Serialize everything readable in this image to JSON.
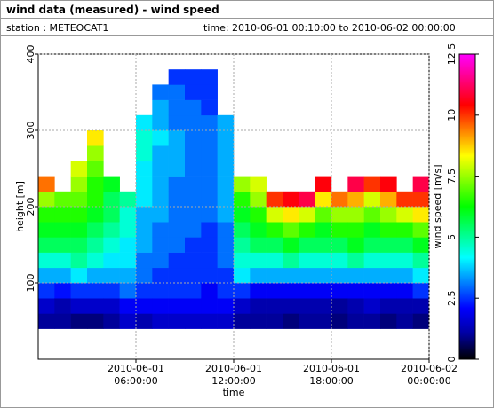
{
  "header": {
    "title": "wind data (measured) - wind speed",
    "station": "station : METEOCAT1",
    "time": "time: 2010-06-01 00:10:00 to 2010-06-02 00:00:00"
  },
  "chart_data": {
    "type": "heatmap",
    "xlabel": "time",
    "ylabel": "height [m]",
    "colorbar_label": "wind speed [m/s]",
    "xlim": [
      0,
      24
    ],
    "xticks": [
      {
        "value": 6,
        "label": "2010-06-01\n06:00:00"
      },
      {
        "value": 12,
        "label": "2010-06-01\n12:00:00"
      },
      {
        "value": 18,
        "label": "2010-06-01\n18:00:00"
      },
      {
        "value": 24,
        "label": "2010-06-02\n00:00:00"
      }
    ],
    "ylim": [
      0,
      400
    ],
    "yticks": [
      100,
      200,
      300,
      400
    ],
    "zlim": [
      0,
      12.5
    ],
    "zticks": [
      0,
      2.5,
      5,
      7.5,
      10,
      12.5
    ],
    "colors": [
      "#000000",
      "#0000a0",
      "#0000ff",
      "#0080ff",
      "#00ffff",
      "#00ff80",
      "#00ff00",
      "#80ff00",
      "#ffff00",
      "#ff8000",
      "#ff0000",
      "#ff0080",
      "#ff00ff"
    ],
    "grid": true,
    "x": [
      0.5,
      1.5,
      2.5,
      3.5,
      4.5,
      5.5,
      6.5,
      7.5,
      8.5,
      9.5,
      10.5,
      11.5,
      12.5,
      13.5,
      14.5,
      15.5,
      16.5,
      17.5,
      18.5,
      19.5,
      20.5,
      21.5,
      22.5,
      23.5
    ],
    "y": [
      50,
      70,
      90,
      110,
      130,
      150,
      170,
      190,
      210,
      230,
      250,
      270,
      290,
      310,
      330,
      350,
      370
    ],
    "values": [
      [
        1,
        1.5,
        2.5,
        3.5,
        4.5,
        5.5,
        6,
        6.5,
        7.5,
        9.5,
        null,
        null,
        null,
        null,
        null,
        null,
        null
      ],
      [
        1,
        1.2,
        2.2,
        3.5,
        4.5,
        5.5,
        6,
        6.5,
        7,
        null,
        null,
        null,
        null,
        null,
        null,
        null,
        null
      ],
      [
        0.8,
        1.5,
        2.5,
        4,
        5,
        5.5,
        6,
        6.5,
        7,
        7.5,
        8,
        null,
        null,
        null,
        null,
        null,
        null
      ],
      [
        0.8,
        1.5,
        2.5,
        3.5,
        4.5,
        5,
        5.5,
        6,
        6.5,
        6.5,
        7,
        7.5,
        8.5,
        null,
        null,
        null,
        null
      ],
      [
        1,
        1.5,
        2.5,
        3.5,
        4,
        4.5,
        5,
        5.5,
        5.5,
        6,
        null,
        null,
        null,
        null,
        null,
        null,
        null
      ],
      [
        1.5,
        2,
        3,
        3.5,
        4,
        4,
        4.5,
        4.5,
        5,
        null,
        null,
        null,
        null,
        null,
        null,
        null,
        null
      ],
      [
        1.2,
        2,
        2.5,
        3,
        3,
        3.5,
        3.5,
        3.5,
        4,
        4,
        4,
        4.5,
        4.5,
        4,
        null,
        null,
        null
      ],
      [
        1.5,
        2,
        2.5,
        2.5,
        3,
        3,
        3,
        3.5,
        3.5,
        3.5,
        3.5,
        3.5,
        4,
        3.5,
        3.5,
        3,
        null
      ],
      [
        1.5,
        2,
        2.5,
        2.5,
        2.5,
        3,
        3,
        3,
        3,
        3,
        3.5,
        3.5,
        3.5,
        3,
        3,
        3,
        2.5
      ],
      [
        1.5,
        2,
        2.5,
        2.5,
        2.5,
        2.5,
        3,
        3,
        3,
        3,
        3,
        3,
        3,
        3,
        3,
        2.5,
        2.5
      ],
      [
        1.5,
        2,
        2,
        2.5,
        2.5,
        2.5,
        2.5,
        3,
        3,
        3,
        3,
        3,
        3,
        3,
        2.5,
        2.5,
        2.5
      ],
      [
        1.5,
        2,
        2.5,
        2.5,
        3,
        3,
        3,
        3.5,
        3.5,
        3.5,
        3.5,
        3.5,
        3.5,
        3.5,
        null,
        null,
        null
      ],
      [
        1,
        1.5,
        2.5,
        4,
        4.5,
        5,
        5.5,
        6,
        6.5,
        7.5,
        null,
        null,
        null,
        null,
        null,
        null,
        null
      ],
      [
        1,
        1.2,
        2,
        3.5,
        4.5,
        5.5,
        6,
        6.5,
        7.5,
        8,
        null,
        null,
        null,
        null,
        null,
        null,
        null
      ],
      [
        1,
        1.2,
        2,
        3.5,
        4.5,
        5.5,
        6.5,
        8,
        10,
        null,
        null,
        null,
        null,
        null,
        null,
        null,
        null
      ],
      [
        0.8,
        1.2,
        2,
        3.5,
        5,
        6,
        7,
        8.5,
        10.5,
        null,
        null,
        null,
        null,
        null,
        null,
        null,
        null
      ],
      [
        1,
        1.2,
        2,
        3.5,
        4.5,
        5.5,
        6.5,
        8,
        11,
        null,
        null,
        null,
        null,
        null,
        null,
        null,
        null
      ],
      [
        1,
        1.2,
        2,
        3.5,
        4.5,
        5.5,
        6,
        7,
        8.5,
        10.5,
        null,
        null,
        null,
        null,
        null,
        null,
        null
      ],
      [
        0.8,
        1,
        2,
        3.5,
        4.5,
        5.5,
        6.5,
        7.5,
        9.5,
        null,
        null,
        null,
        null,
        null,
        null,
        null,
        null
      ],
      [
        1,
        1.2,
        2,
        3.5,
        5,
        6,
        6.5,
        7.5,
        9,
        11,
        null,
        null,
        null,
        null,
        null,
        null,
        null
      ],
      [
        1,
        1.5,
        2,
        3.5,
        4.5,
        5.5,
        6,
        7,
        8,
        10,
        null,
        null,
        null,
        null,
        null,
        null,
        null
      ],
      [
        0.8,
        1.2,
        2,
        3.5,
        4.5,
        5.5,
        6.5,
        7.5,
        9,
        10.5,
        null,
        null,
        null,
        null,
        null,
        null,
        null
      ],
      [
        1,
        1.2,
        2,
        3.5,
        4.5,
        5.5,
        6.5,
        8,
        10,
        null,
        null,
        null,
        null,
        null,
        null,
        null,
        null
      ],
      [
        0.8,
        1.2,
        2.5,
        4,
        5,
        6,
        7,
        8.5,
        10,
        11,
        null,
        null,
        null,
        null,
        null,
        null,
        null
      ]
    ]
  }
}
